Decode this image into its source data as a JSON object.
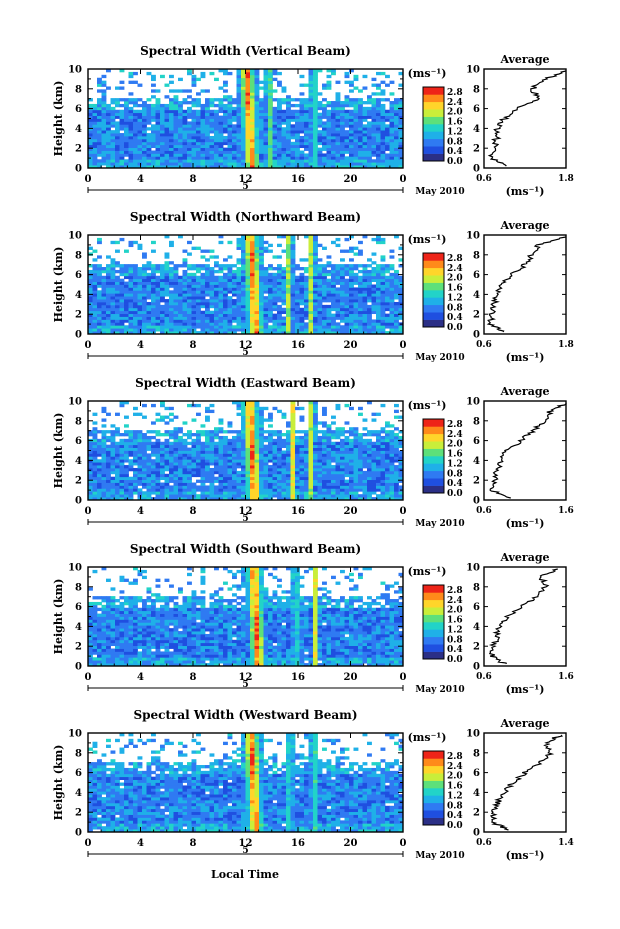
{
  "figure": {
    "xlabel": "Local Time",
    "date_label": "May 2010",
    "ylabel": "Height (km)",
    "unit_label": "(ms⁻¹)",
    "average_title": "Average",
    "average_xlabel": "(ms⁻¹)",
    "colorbar_ticks": [
      "0.0",
      "0.4",
      "0.8",
      "1.2",
      "1.6",
      "2.0",
      "2.4",
      "2.8"
    ],
    "colorbar_colors": [
      "#2b2f86",
      "#1f4fe0",
      "#2f7af2",
      "#1fb0e8",
      "#22d3c8",
      "#5de07a",
      "#c9ee3a",
      "#ffd52a",
      "#ff8a1a",
      "#ee2418"
    ]
  },
  "chart_data": [
    {
      "type": "heatmap",
      "title": "Spectral Width (Vertical Beam)",
      "xlabel": "Local Time",
      "ylabel": "Height (km)",
      "x_ticks": [
        "0",
        "4",
        "8",
        "12",
        "16",
        "20",
        "0"
      ],
      "y_ticks": [
        "0",
        "2",
        "4",
        "6",
        "8",
        "10"
      ],
      "xlim": [
        0,
        24
      ],
      "ylim": [
        0,
        10
      ],
      "date_marker": "5",
      "date": "May 2010",
      "colorbar_label": "(ms⁻¹)",
      "colorbar_range": [
        0.0,
        3.0
      ],
      "high_width_bands_hours": [
        12.3,
        13.8,
        17.2
      ],
      "average": {
        "title": "Average",
        "xlabel": "(ms⁻¹)",
        "x_ticks": [
          "0.6",
          "1.8"
        ],
        "xlim": [
          0.6,
          1.8
        ],
        "profile": [
          [
            0.2,
            0.95
          ],
          [
            1,
            0.7
          ],
          [
            2,
            0.75
          ],
          [
            3,
            0.78
          ],
          [
            4,
            0.8
          ],
          [
            5,
            0.9
          ],
          [
            6,
            1.1
          ],
          [
            7,
            1.4
          ],
          [
            8,
            1.3
          ],
          [
            9,
            1.5
          ],
          [
            9.8,
            1.8
          ]
        ]
      }
    },
    {
      "type": "heatmap",
      "title": "Spectral Width (Northward Beam)",
      "xlabel": "Local Time",
      "ylabel": "Height (km)",
      "x_ticks": [
        "0",
        "4",
        "8",
        "12",
        "16",
        "20",
        "0"
      ],
      "y_ticks": [
        "0",
        "2",
        "4",
        "6",
        "8",
        "10"
      ],
      "xlim": [
        0,
        24
      ],
      "ylim": [
        0,
        10
      ],
      "date_marker": "5",
      "date": "May 2010",
      "colorbar_label": "(ms⁻¹)",
      "colorbar_range": [
        0.0,
        3.0
      ],
      "high_width_bands_hours": [
        12.6,
        15.3,
        17.0
      ],
      "average": {
        "title": "Average",
        "xlabel": "(ms⁻¹)",
        "x_ticks": [
          "0.6",
          "1.8"
        ],
        "xlim": [
          0.6,
          1.8
        ],
        "profile": [
          [
            0.2,
            0.9
          ],
          [
            1,
            0.68
          ],
          [
            2,
            0.72
          ],
          [
            3,
            0.75
          ],
          [
            4,
            0.78
          ],
          [
            5,
            0.85
          ],
          [
            6,
            1.0
          ],
          [
            7,
            1.2
          ],
          [
            8,
            1.3
          ],
          [
            9,
            1.4
          ],
          [
            9.8,
            1.8
          ]
        ]
      }
    },
    {
      "type": "heatmap",
      "title": "Spectral Width (Eastward Beam)",
      "xlabel": "Local Time",
      "ylabel": "Height (km)",
      "x_ticks": [
        "0",
        "4",
        "8",
        "12",
        "16",
        "20",
        "0"
      ],
      "y_ticks": [
        "0",
        "2",
        "4",
        "6",
        "8",
        "10"
      ],
      "xlim": [
        0,
        24
      ],
      "ylim": [
        0,
        10
      ],
      "date_marker": "5",
      "date": "May 2010",
      "colorbar_label": "(ms⁻¹)",
      "colorbar_range": [
        0.0,
        3.0
      ],
      "high_width_bands_hours": [
        12.5,
        15.6,
        17.0
      ],
      "average": {
        "title": "Average",
        "xlabel": "(ms⁻¹)",
        "x_ticks": [
          "0.6",
          "1.6"
        ],
        "xlim": [
          0.6,
          1.6
        ],
        "profile": [
          [
            0.2,
            0.9
          ],
          [
            1,
            0.7
          ],
          [
            2,
            0.73
          ],
          [
            3,
            0.76
          ],
          [
            4,
            0.8
          ],
          [
            5,
            0.88
          ],
          [
            6,
            1.05
          ],
          [
            7,
            1.2
          ],
          [
            8,
            1.35
          ],
          [
            9,
            1.4
          ],
          [
            9.8,
            1.6
          ]
        ]
      }
    },
    {
      "type": "heatmap",
      "title": "Spectral Width (Southward Beam)",
      "xlabel": "Local Time",
      "ylabel": "Height (km)",
      "x_ticks": [
        "0",
        "4",
        "8",
        "12",
        "16",
        "20",
        "0"
      ],
      "y_ticks": [
        "0",
        "2",
        "4",
        "6",
        "8",
        "10"
      ],
      "xlim": [
        0,
        24
      ],
      "ylim": [
        0,
        10
      ],
      "date_marker": "5",
      "date": "May 2010",
      "colorbar_label": "(ms⁻¹)",
      "colorbar_range": [
        0.0,
        3.0
      ],
      "high_width_bands_hours": [
        12.8,
        15.8,
        17.3
      ],
      "average": {
        "title": "Average",
        "xlabel": "(ms⁻¹)",
        "x_ticks": [
          "0.6",
          "1.6"
        ],
        "xlim": [
          0.6,
          1.6
        ],
        "profile": [
          [
            0.2,
            0.85
          ],
          [
            1,
            0.7
          ],
          [
            2,
            0.72
          ],
          [
            3,
            0.75
          ],
          [
            4,
            0.8
          ],
          [
            5,
            0.9
          ],
          [
            6,
            1.05
          ],
          [
            7,
            1.25
          ],
          [
            8,
            1.35
          ],
          [
            9,
            1.3
          ],
          [
            9.8,
            1.5
          ]
        ]
      }
    },
    {
      "type": "heatmap",
      "title": "Spectral Width (Westward Beam)",
      "xlabel": "Local Time",
      "ylabel": "Height (km)",
      "x_ticks": [
        "0",
        "4",
        "8",
        "12",
        "16",
        "20",
        "0"
      ],
      "y_ticks": [
        "0",
        "2",
        "4",
        "6",
        "8",
        "10"
      ],
      "xlim": [
        0,
        24
      ],
      "ylim": [
        0,
        10
      ],
      "date_marker": "5",
      "date": "May 2010",
      "colorbar_label": "(ms⁻¹)",
      "colorbar_range": [
        0.0,
        3.0
      ],
      "high_width_bands_hours": [
        12.6,
        15.4,
        17.2
      ],
      "average": {
        "title": "Average",
        "xlabel": "(ms⁻¹)",
        "x_ticks": [
          "0.6",
          "1.4"
        ],
        "xlim": [
          0.6,
          1.4
        ],
        "profile": [
          [
            0.2,
            0.85
          ],
          [
            1,
            0.68
          ],
          [
            2,
            0.7
          ],
          [
            3,
            0.73
          ],
          [
            4,
            0.8
          ],
          [
            5,
            0.88
          ],
          [
            6,
            1.0
          ],
          [
            7,
            1.15
          ],
          [
            8,
            1.25
          ],
          [
            9,
            1.2
          ],
          [
            9.8,
            1.35
          ]
        ]
      }
    }
  ]
}
